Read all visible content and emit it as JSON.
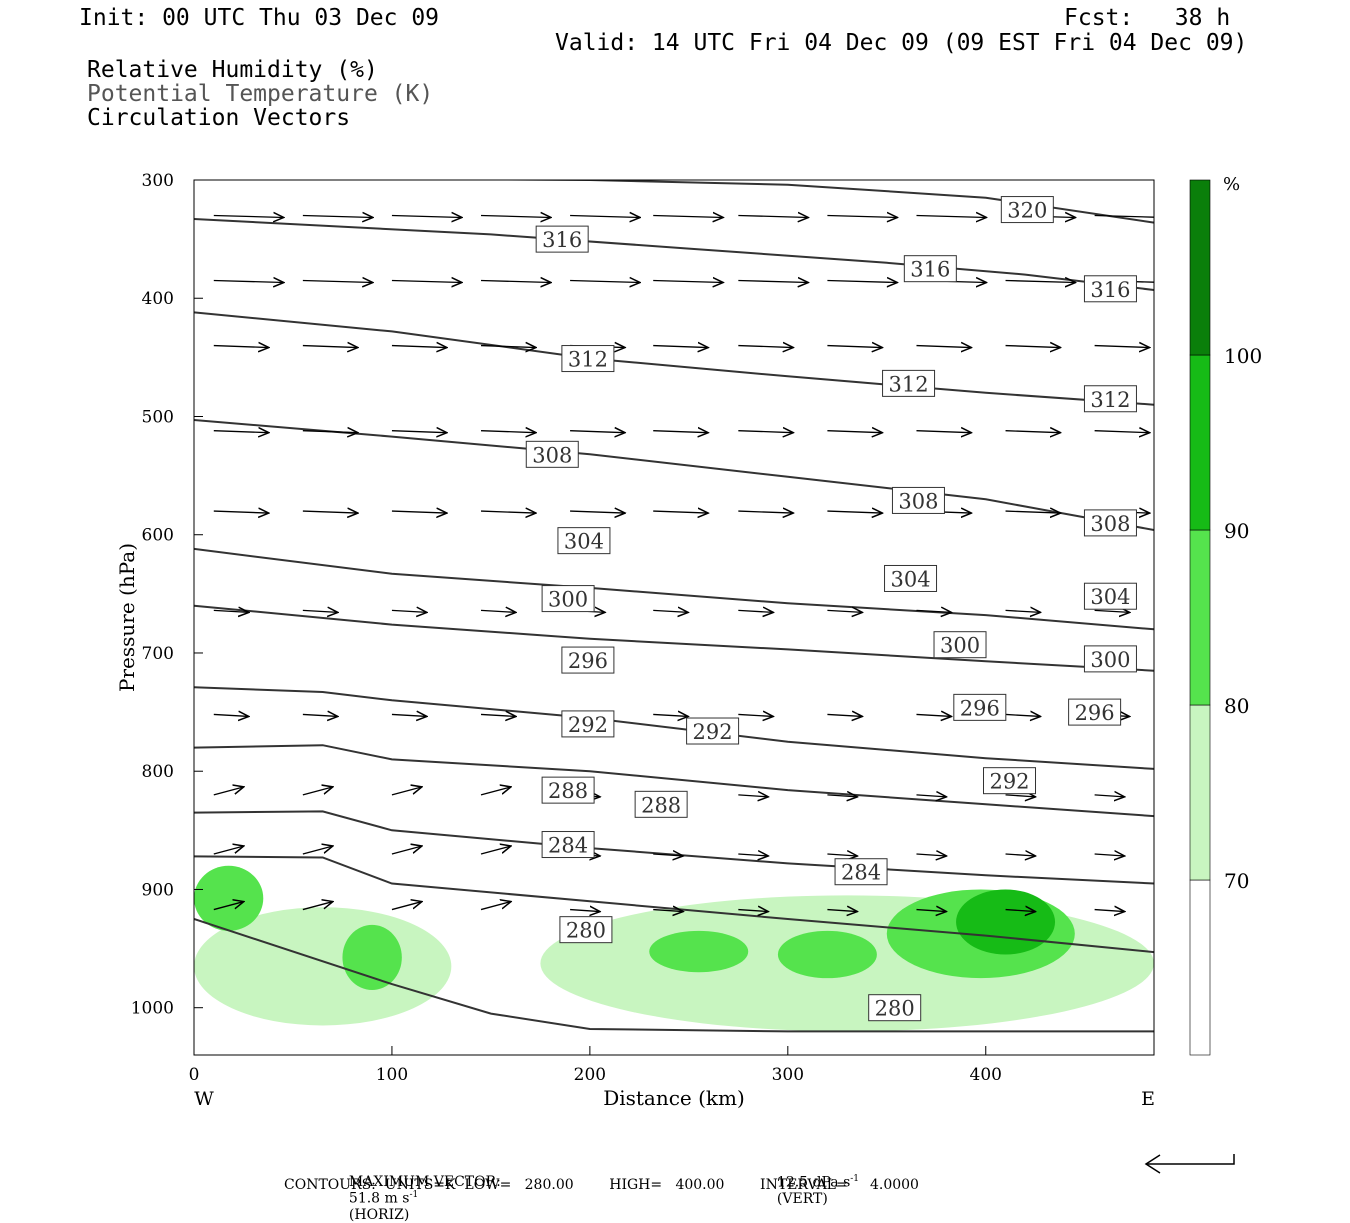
{
  "header": {
    "init": "Init: 00 UTC Thu 03 Dec 09",
    "fcst": "Fcst:   38 h",
    "valid": "Valid: 14 UTC Fri 04 Dec 09 (09 EST Fri 04 Dec 09)",
    "field1": "Relative Humidity (%)",
    "field2": "Potential Temperature (K)",
    "field3": "Circulation Vectors"
  },
  "colorbar": {
    "unit": "%",
    "levels": [
      "70",
      "80",
      "90",
      "100"
    ],
    "colors": [
      "#ffffff",
      "#c8f5c0",
      "#55e34d",
      "#16bb16",
      "#0a7f0a"
    ]
  },
  "footer": {
    "maxvec_label": "MAXIMUM VECTOR:",
    "maxvec_h": "51.8 m s",
    "horiz": "(HORIZ)",
    "maxvec_v": "12.5 dPa s",
    "vert": "(VERT)",
    "exp": "-1",
    "contours": "CONTOURS:  UNITS=K  LOW=   280.00        HIGH=   400.00        INTERVAL=     4.0000"
  },
  "chart_data": {
    "type": "cross-section",
    "xlabel": "Distance (km)",
    "ylabel": "Pressure (hPa)",
    "xlim": [
      0,
      485
    ],
    "ylim": [
      1040,
      300
    ],
    "x_ticks": [
      0,
      100,
      200,
      300,
      400
    ],
    "y_ticks": [
      300,
      400,
      500,
      600,
      700,
      800,
      900,
      1000
    ],
    "x_end_labels": {
      "left": "W",
      "right": "E"
    },
    "theta_contours": [
      {
        "label": "320",
        "points": [
          [
            0,
            298
          ],
          [
            200,
            300
          ],
          [
            300,
            304
          ],
          [
            400,
            315
          ],
          [
            485,
            336
          ]
        ],
        "label_at": [
          [
            421,
            325
          ]
        ]
      },
      {
        "label": "316",
        "points": [
          [
            0,
            333
          ],
          [
            150,
            346
          ],
          [
            250,
            358
          ],
          [
            350,
            370
          ],
          [
            420,
            380
          ],
          [
            485,
            393
          ]
        ],
        "label_at": [
          [
            186,
            350
          ],
          [
            372,
            375
          ],
          [
            463,
            392
          ]
        ]
      },
      {
        "label": "312",
        "points": [
          [
            0,
            412
          ],
          [
            100,
            428
          ],
          [
            200,
            451
          ],
          [
            300,
            466
          ],
          [
            400,
            480
          ],
          [
            485,
            490
          ]
        ],
        "label_at": [
          [
            199,
            451
          ],
          [
            361,
            472
          ],
          [
            463,
            485
          ]
        ]
      },
      {
        "label": "308",
        "points": [
          [
            0,
            503
          ],
          [
            100,
            517
          ],
          [
            200,
            532
          ],
          [
            300,
            551
          ],
          [
            400,
            570
          ],
          [
            485,
            596
          ]
        ],
        "label_at": [
          [
            181,
            532
          ],
          [
            366,
            571
          ],
          [
            463,
            590
          ]
        ]
      },
      {
        "label": "304",
        "points": [
          [
            0,
            612
          ],
          [
            100,
            633
          ],
          [
            200,
            645
          ],
          [
            300,
            658
          ],
          [
            400,
            668
          ],
          [
            485,
            680
          ]
        ],
        "label_at": [
          [
            197,
            605
          ],
          [
            362,
            637
          ],
          [
            463,
            652
          ]
        ]
      },
      {
        "label": "300",
        "points": [
          [
            0,
            660
          ],
          [
            100,
            676
          ],
          [
            200,
            688
          ],
          [
            300,
            697
          ],
          [
            400,
            707
          ],
          [
            485,
            715
          ]
        ],
        "label_at": [
          [
            189,
            654
          ],
          [
            387,
            693
          ],
          [
            463,
            705
          ]
        ]
      },
      {
        "label": "296",
        "points": [
          [
            0,
            729
          ],
          [
            65,
            733
          ],
          [
            100,
            740
          ],
          [
            200,
            755
          ],
          [
            300,
            775
          ],
          [
            400,
            789
          ],
          [
            485,
            798
          ]
        ],
        "label_at": [
          [
            199,
            706
          ],
          [
            397,
            746
          ],
          [
            455,
            750
          ]
        ]
      },
      {
        "label": "292",
        "points": [
          [
            0,
            780
          ],
          [
            65,
            778
          ],
          [
            100,
            790
          ],
          [
            200,
            800
          ],
          [
            300,
            816
          ],
          [
            400,
            828
          ],
          [
            485,
            838
          ]
        ],
        "label_at": [
          [
            199,
            760
          ],
          [
            262,
            766
          ],
          [
            412,
            808
          ]
        ]
      },
      {
        "label": "288",
        "points": [
          [
            0,
            835
          ],
          [
            65,
            834
          ],
          [
            100,
            850
          ],
          [
            200,
            865
          ],
          [
            300,
            878
          ],
          [
            400,
            888
          ],
          [
            485,
            895
          ]
        ],
        "label_at": [
          [
            189,
            816
          ],
          [
            236,
            828
          ]
        ]
      },
      {
        "label": "284",
        "points": [
          [
            0,
            872
          ],
          [
            65,
            873
          ],
          [
            100,
            895
          ],
          [
            200,
            910
          ],
          [
            300,
            925
          ],
          [
            400,
            939
          ],
          [
            485,
            953
          ]
        ],
        "label_at": [
          [
            189,
            862
          ],
          [
            337,
            885
          ]
        ]
      },
      {
        "label": "280",
        "points": [
          [
            0,
            925
          ],
          [
            100,
            980
          ],
          [
            150,
            1005
          ],
          [
            200,
            1018
          ],
          [
            300,
            1020
          ],
          [
            485,
            1020
          ]
        ],
        "label_at": [
          [
            198,
            934
          ],
          [
            354,
            1000
          ]
        ]
      }
    ],
    "rh_areas": [
      {
        "level": "70",
        "region": "west surface band",
        "x": [
          0,
          130
        ],
        "p": [
          915,
          1015
        ]
      },
      {
        "level": "70",
        "region": "east surface band",
        "x": [
          175,
          485
        ],
        "p": [
          905,
          1020
        ]
      },
      {
        "level": "80",
        "region": "near x=10",
        "x": [
          0,
          35
        ],
        "p": [
          880,
          935
        ]
      },
      {
        "level": "80",
        "region": "near x=90",
        "x": [
          75,
          105
        ],
        "p": [
          930,
          985
        ]
      },
      {
        "level": "80",
        "region": "near x=250",
        "x": [
          230,
          280
        ],
        "p": [
          935,
          970
        ]
      },
      {
        "level": "80",
        "region": "near x=320",
        "x": [
          295,
          345
        ],
        "p": [
          935,
          975
        ]
      },
      {
        "level": "80",
        "region": "near x=400",
        "x": [
          350,
          445
        ],
        "p": [
          900,
          975
        ]
      },
      {
        "level": "90",
        "region": "near x=410",
        "x": [
          385,
          435
        ],
        "p": [
          900,
          955
        ]
      }
    ],
    "vector_max": {
      "horiz": "51.8 m s-1",
      "vert": "12.5 dPa s-1"
    },
    "contour_info": {
      "units": "K",
      "low": 280.0,
      "high": 400.0,
      "interval": 4.0
    }
  }
}
